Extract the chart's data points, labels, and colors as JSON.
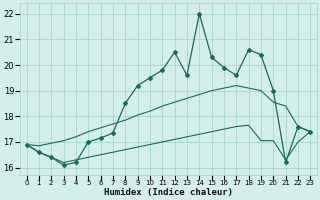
{
  "xlabel": "Humidex (Indice chaleur)",
  "bg_color": "#d4eeea",
  "grid_color": "#aad4ce",
  "line_color": "#1a6b5a",
  "xlim": [
    -0.5,
    23.5
  ],
  "ylim": [
    15.7,
    22.4
  ],
  "yticks": [
    16,
    17,
    18,
    19,
    20,
    21,
    22
  ],
  "xtick_labels": [
    "0",
    "1",
    "2",
    "3",
    "4",
    "5",
    "6",
    "7",
    "8",
    "9",
    "10",
    "11",
    "12",
    "13",
    "14",
    "15",
    "16",
    "17",
    "18",
    "19",
    "20",
    "21",
    "22",
    "23"
  ],
  "main_y": [
    16.9,
    16.6,
    16.4,
    16.1,
    16.2,
    17.0,
    17.15,
    17.35,
    18.5,
    19.2,
    19.5,
    19.8,
    20.5,
    19.6,
    22.0,
    20.3,
    19.9,
    19.6,
    20.6,
    20.4,
    19.0,
    16.2,
    17.6,
    17.4
  ],
  "upper_line_y": [
    16.9,
    16.85,
    16.95,
    17.05,
    17.2,
    17.4,
    17.55,
    17.7,
    17.85,
    18.05,
    18.2,
    18.4,
    18.55,
    18.7,
    18.85,
    19.0,
    19.1,
    19.2,
    19.1,
    19.0,
    18.55,
    18.4,
    17.6,
    17.4
  ],
  "lower_line_y": [
    16.9,
    16.6,
    16.4,
    16.2,
    16.3,
    16.4,
    16.5,
    16.6,
    16.7,
    16.8,
    16.9,
    17.0,
    17.1,
    17.2,
    17.3,
    17.4,
    17.5,
    17.6,
    17.65,
    17.05,
    17.05,
    16.3,
    17.0,
    17.4
  ]
}
